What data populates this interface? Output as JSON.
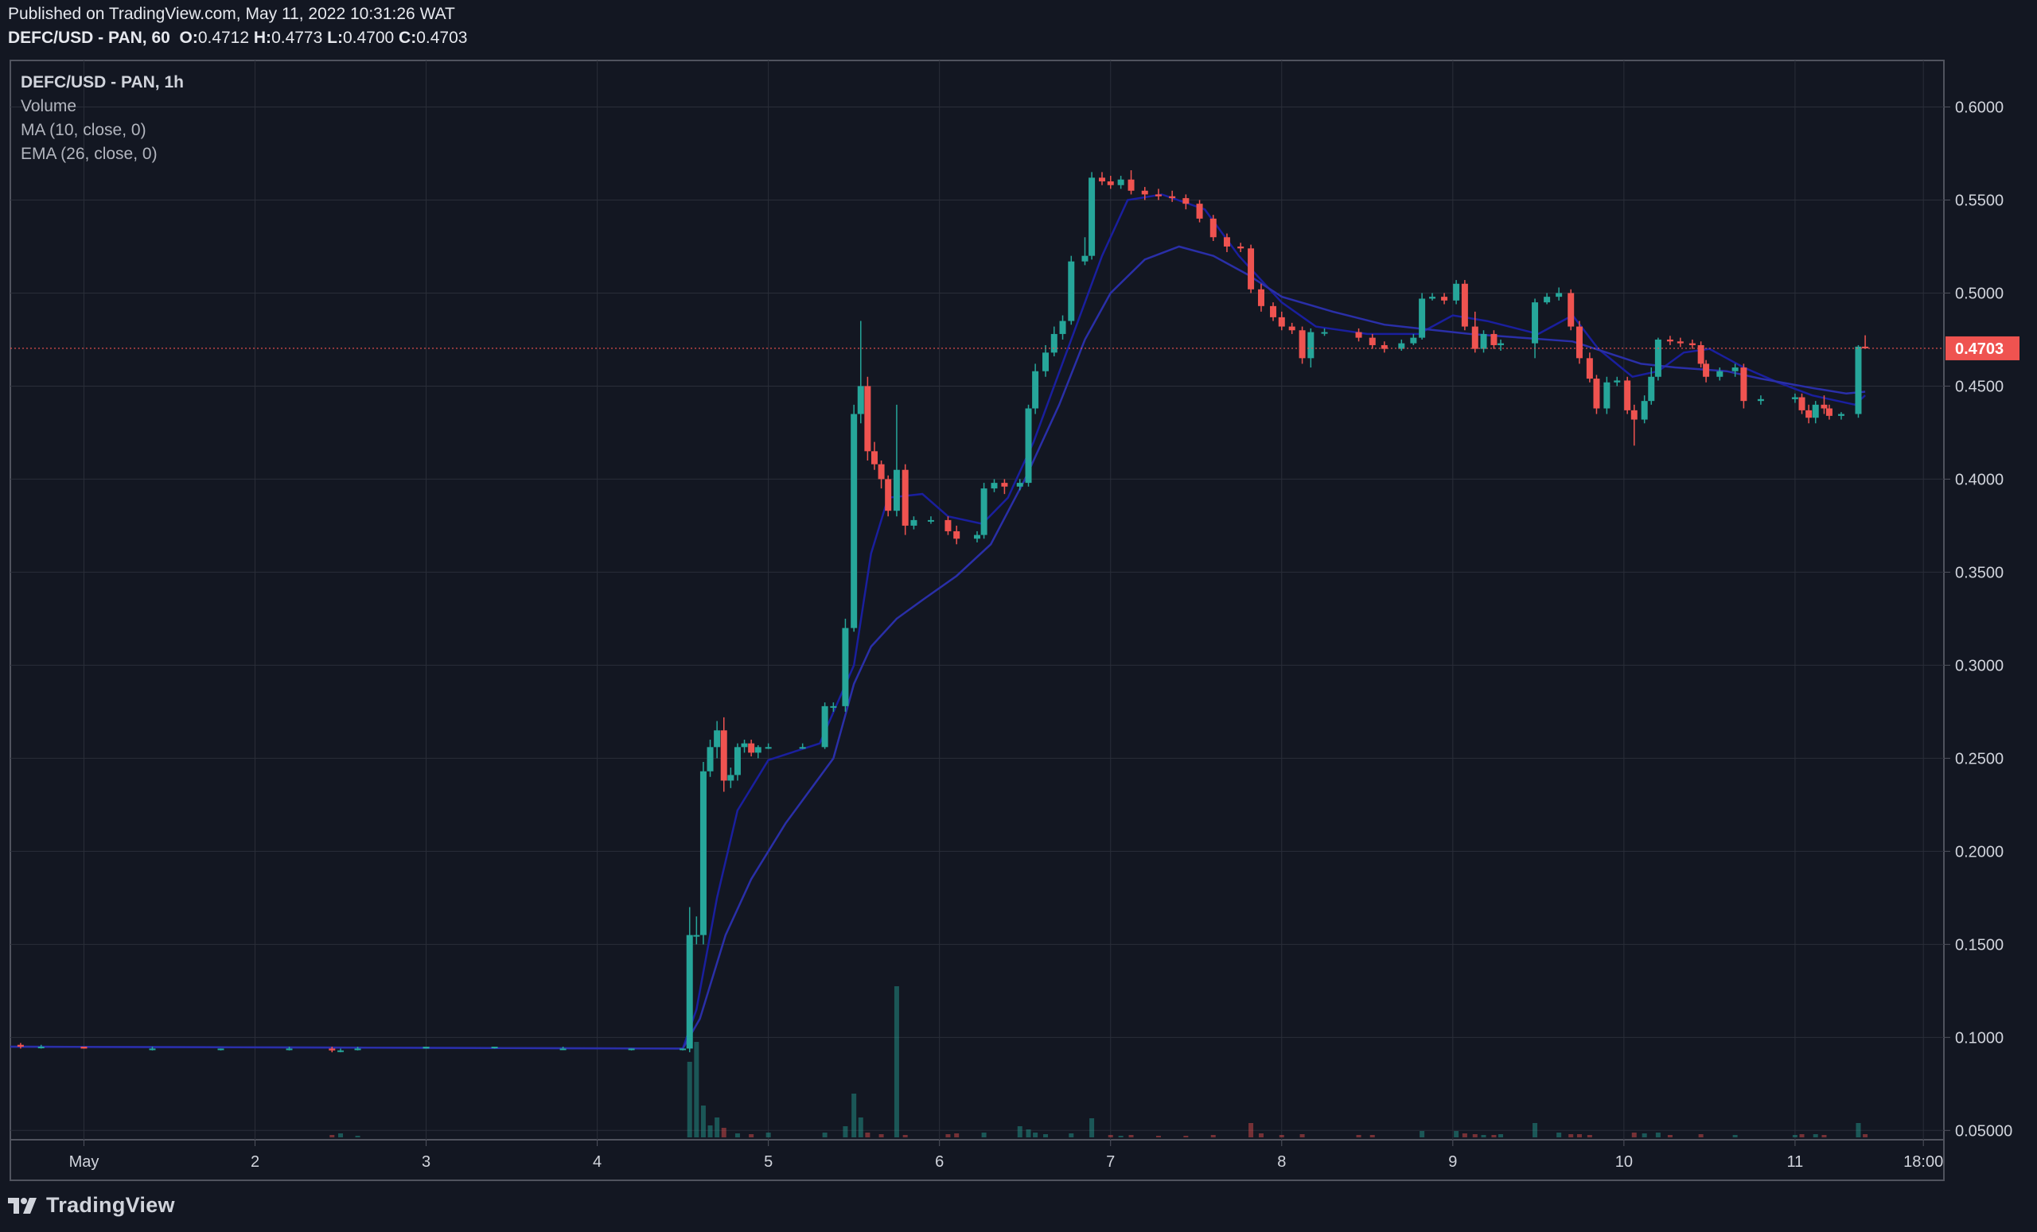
{
  "header": {
    "published": "Published on TradingView.com, May 11, 2022 10:31:26 WAT",
    "symbol": "DEFC/USD - PAN, 60",
    "o_label": "O:",
    "o": "0.4712",
    "h_label": "H:",
    "h": "0.4773",
    "l_label": "L:",
    "l": "0.4700",
    "c_label": "C:",
    "c": "0.4703"
  },
  "legend": {
    "title": "DEFC/USD - PAN, 1h",
    "volume": "Volume",
    "ma": "MA (10, close, 0)",
    "ema": "EMA (26, close, 0)"
  },
  "footer": {
    "brand": "TradingView"
  },
  "colors": {
    "background": "#131722",
    "up": "#26a69a",
    "down": "#ef5350",
    "ma": "#1a1f9e",
    "ema": "#2a2fa8",
    "grid": "#2a2e39",
    "price_line": "#ef5350"
  },
  "chart_data": {
    "type": "candlestick",
    "title": "DEFC/USD - PAN, 1h",
    "y_ticks": [
      "0.6000",
      "0.5500",
      "0.5000",
      "0.4500",
      "0.4000",
      "0.3500",
      "0.3000",
      "0.2500",
      "0.2000",
      "0.1500",
      "0.1000",
      "0.05000"
    ],
    "ylim": [
      0.045,
      0.625
    ],
    "x_ticks": [
      {
        "label": "May",
        "t": 0
      },
      {
        "label": "2",
        "t": 1
      },
      {
        "label": "3",
        "t": 2
      },
      {
        "label": "4",
        "t": 3
      },
      {
        "label": "5",
        "t": 4
      },
      {
        "label": "6",
        "t": 5
      },
      {
        "label": "7",
        "t": 6
      },
      {
        "label": "8",
        "t": 7
      },
      {
        "label": "9",
        "t": 8
      },
      {
        "label": "10",
        "t": 9
      },
      {
        "label": "11",
        "t": 10
      },
      {
        "label": "18:00",
        "t": 10.75
      }
    ],
    "xlim": [
      -0.43,
      10.87
    ],
    "last_price": 0.4703,
    "last_price_label": "0.4703",
    "candles": [
      [
        -0.37,
        0.096,
        0.097,
        0.094,
        0.095
      ],
      [
        -0.25,
        0.095,
        0.096,
        0.094,
        0.095
      ],
      [
        0.0,
        0.095,
        0.095,
        0.094,
        0.094
      ],
      [
        0.4,
        0.094,
        0.095,
        0.093,
        0.094
      ],
      [
        0.8,
        0.094,
        0.094,
        0.093,
        0.094
      ],
      [
        1.2,
        0.094,
        0.095,
        0.093,
        0.094
      ],
      [
        1.45,
        0.094,
        0.095,
        0.092,
        0.093
      ],
      [
        1.5,
        0.093,
        0.094,
        0.092,
        0.093
      ],
      [
        1.6,
        0.094,
        0.095,
        0.093,
        0.094
      ],
      [
        2.0,
        0.094,
        0.095,
        0.094,
        0.095
      ],
      [
        2.4,
        0.095,
        0.095,
        0.094,
        0.095
      ],
      [
        2.8,
        0.094,
        0.095,
        0.094,
        0.094
      ],
      [
        3.2,
        0.094,
        0.094,
        0.093,
        0.094
      ],
      [
        3.5,
        0.094,
        0.094,
        0.093,
        0.094
      ],
      [
        3.54,
        0.094,
        0.17,
        0.092,
        0.155
      ],
      [
        3.58,
        0.155,
        0.165,
        0.15,
        0.155
      ],
      [
        3.62,
        0.155,
        0.248,
        0.15,
        0.243
      ],
      [
        3.66,
        0.243,
        0.26,
        0.24,
        0.256
      ],
      [
        3.7,
        0.256,
        0.27,
        0.25,
        0.265
      ],
      [
        3.74,
        0.265,
        0.272,
        0.232,
        0.238
      ],
      [
        3.78,
        0.238,
        0.245,
        0.234,
        0.241
      ],
      [
        3.82,
        0.241,
        0.258,
        0.238,
        0.256
      ],
      [
        3.86,
        0.256,
        0.26,
        0.253,
        0.258
      ],
      [
        3.9,
        0.258,
        0.26,
        0.251,
        0.253
      ],
      [
        3.94,
        0.253,
        0.257,
        0.25,
        0.256
      ],
      [
        4.0,
        0.256,
        0.258,
        0.255,
        0.256
      ],
      [
        4.2,
        0.256,
        0.258,
        0.255,
        0.256
      ],
      [
        4.33,
        0.256,
        0.28,
        0.255,
        0.278
      ],
      [
        4.38,
        0.278,
        0.28,
        0.275,
        0.278
      ],
      [
        4.45,
        0.278,
        0.325,
        0.275,
        0.32
      ],
      [
        4.5,
        0.32,
        0.44,
        0.318,
        0.435
      ],
      [
        4.54,
        0.435,
        0.485,
        0.43,
        0.45
      ],
      [
        4.58,
        0.45,
        0.455,
        0.41,
        0.415
      ],
      [
        4.62,
        0.415,
        0.42,
        0.405,
        0.408
      ],
      [
        4.66,
        0.408,
        0.41,
        0.395,
        0.4
      ],
      [
        4.7,
        0.4,
        0.402,
        0.38,
        0.383
      ],
      [
        4.75,
        0.383,
        0.44,
        0.38,
        0.405
      ],
      [
        4.8,
        0.405,
        0.408,
        0.37,
        0.375
      ],
      [
        4.85,
        0.375,
        0.38,
        0.373,
        0.378
      ],
      [
        4.95,
        0.378,
        0.38,
        0.376,
        0.378
      ],
      [
        5.05,
        0.378,
        0.38,
        0.37,
        0.372
      ],
      [
        5.1,
        0.372,
        0.375,
        0.365,
        0.368
      ],
      [
        5.22,
        0.368,
        0.372,
        0.366,
        0.37
      ],
      [
        5.26,
        0.37,
        0.398,
        0.368,
        0.395
      ],
      [
        5.32,
        0.395,
        0.4,
        0.393,
        0.398
      ],
      [
        5.38,
        0.398,
        0.4,
        0.392,
        0.396
      ],
      [
        5.47,
        0.396,
        0.4,
        0.394,
        0.398
      ],
      [
        5.52,
        0.398,
        0.44,
        0.396,
        0.438
      ],
      [
        5.56,
        0.438,
        0.462,
        0.435,
        0.458
      ],
      [
        5.62,
        0.458,
        0.472,
        0.455,
        0.468
      ],
      [
        5.67,
        0.468,
        0.482,
        0.466,
        0.478
      ],
      [
        5.72,
        0.478,
        0.488,
        0.475,
        0.485
      ],
      [
        5.77,
        0.485,
        0.52,
        0.483,
        0.517
      ],
      [
        5.85,
        0.517,
        0.53,
        0.515,
        0.52
      ],
      [
        5.89,
        0.52,
        0.565,
        0.518,
        0.562
      ],
      [
        5.95,
        0.562,
        0.565,
        0.558,
        0.56
      ],
      [
        6.0,
        0.56,
        0.563,
        0.556,
        0.558
      ],
      [
        6.06,
        0.558,
        0.563,
        0.556,
        0.561
      ],
      [
        6.12,
        0.561,
        0.566,
        0.553,
        0.555
      ],
      [
        6.2,
        0.555,
        0.557,
        0.55,
        0.553
      ],
      [
        6.28,
        0.553,
        0.556,
        0.55,
        0.552
      ],
      [
        6.36,
        0.552,
        0.555,
        0.549,
        0.551
      ],
      [
        6.44,
        0.551,
        0.553,
        0.545,
        0.548
      ],
      [
        6.52,
        0.548,
        0.55,
        0.538,
        0.54
      ],
      [
        6.6,
        0.54,
        0.542,
        0.528,
        0.53
      ],
      [
        6.68,
        0.53,
        0.532,
        0.522,
        0.525
      ],
      [
        6.76,
        0.525,
        0.527,
        0.522,
        0.524
      ],
      [
        6.82,
        0.524,
        0.526,
        0.5,
        0.502
      ],
      [
        6.88,
        0.502,
        0.505,
        0.49,
        0.493
      ],
      [
        6.95,
        0.493,
        0.495,
        0.485,
        0.487
      ],
      [
        7.0,
        0.487,
        0.49,
        0.48,
        0.482
      ],
      [
        7.06,
        0.482,
        0.484,
        0.478,
        0.48
      ],
      [
        7.12,
        0.48,
        0.482,
        0.462,
        0.465
      ],
      [
        7.17,
        0.465,
        0.481,
        0.46,
        0.479
      ],
      [
        7.25,
        0.479,
        0.481,
        0.477,
        0.479
      ],
      [
        7.45,
        0.479,
        0.481,
        0.474,
        0.476
      ],
      [
        7.53,
        0.476,
        0.478,
        0.47,
        0.472
      ],
      [
        7.6,
        0.472,
        0.474,
        0.468,
        0.47
      ],
      [
        7.7,
        0.47,
        0.475,
        0.469,
        0.473
      ],
      [
        7.77,
        0.473,
        0.478,
        0.472,
        0.476
      ],
      [
        7.82,
        0.476,
        0.5,
        0.475,
        0.497
      ],
      [
        7.88,
        0.497,
        0.5,
        0.496,
        0.498
      ],
      [
        7.95,
        0.498,
        0.5,
        0.494,
        0.496
      ],
      [
        8.02,
        0.496,
        0.507,
        0.494,
        0.505
      ],
      [
        8.07,
        0.505,
        0.507,
        0.48,
        0.482
      ],
      [
        8.13,
        0.482,
        0.49,
        0.468,
        0.47
      ],
      [
        8.18,
        0.47,
        0.48,
        0.468,
        0.478
      ],
      [
        8.24,
        0.478,
        0.48,
        0.47,
        0.472
      ],
      [
        8.28,
        0.472,
        0.475,
        0.469,
        0.473
      ],
      [
        8.48,
        0.473,
        0.497,
        0.465,
        0.495
      ],
      [
        8.55,
        0.495,
        0.5,
        0.494,
        0.498
      ],
      [
        8.62,
        0.498,
        0.503,
        0.496,
        0.5
      ],
      [
        8.69,
        0.5,
        0.502,
        0.48,
        0.482
      ],
      [
        8.74,
        0.482,
        0.485,
        0.462,
        0.465
      ],
      [
        8.8,
        0.465,
        0.468,
        0.452,
        0.454
      ],
      [
        8.84,
        0.454,
        0.456,
        0.435,
        0.438
      ],
      [
        8.9,
        0.438,
        0.455,
        0.435,
        0.452
      ],
      [
        8.96,
        0.452,
        0.455,
        0.45,
        0.453
      ],
      [
        9.02,
        0.453,
        0.455,
        0.435,
        0.437
      ],
      [
        9.06,
        0.437,
        0.44,
        0.418,
        0.432
      ],
      [
        9.12,
        0.432,
        0.445,
        0.43,
        0.442
      ],
      [
        9.16,
        0.442,
        0.46,
        0.44,
        0.455
      ],
      [
        9.2,
        0.455,
        0.476,
        0.453,
        0.475
      ],
      [
        9.27,
        0.475,
        0.477,
        0.472,
        0.474
      ],
      [
        9.33,
        0.474,
        0.476,
        0.471,
        0.473
      ],
      [
        9.4,
        0.473,
        0.475,
        0.47,
        0.472
      ],
      [
        9.45,
        0.472,
        0.474,
        0.46,
        0.462
      ],
      [
        9.48,
        0.462,
        0.464,
        0.452,
        0.455
      ],
      [
        9.56,
        0.455,
        0.46,
        0.453,
        0.458
      ],
      [
        9.65,
        0.458,
        0.462,
        0.455,
        0.46
      ],
      [
        9.7,
        0.46,
        0.462,
        0.438,
        0.442
      ],
      [
        9.8,
        0.442,
        0.445,
        0.44,
        0.443
      ],
      [
        10.0,
        0.443,
        0.446,
        0.441,
        0.444
      ],
      [
        10.04,
        0.444,
        0.446,
        0.435,
        0.437
      ],
      [
        10.08,
        0.437,
        0.44,
        0.43,
        0.433
      ],
      [
        10.12,
        0.433,
        0.442,
        0.43,
        0.44
      ],
      [
        10.17,
        0.44,
        0.445,
        0.435,
        0.438
      ],
      [
        10.2,
        0.438,
        0.44,
        0.432,
        0.434
      ],
      [
        10.27,
        0.434,
        0.436,
        0.432,
        0.435
      ],
      [
        10.37,
        0.435,
        0.472,
        0.433,
        0.4712
      ],
      [
        10.41,
        0.4712,
        0.4773,
        0.47,
        0.4703
      ]
    ],
    "volume": [
      [
        1.45,
        3
      ],
      [
        1.5,
        5
      ],
      [
        1.6,
        2
      ],
      [
        3.54,
        95
      ],
      [
        3.58,
        120
      ],
      [
        3.62,
        40
      ],
      [
        3.66,
        15
      ],
      [
        3.7,
        25
      ],
      [
        3.74,
        12
      ],
      [
        3.82,
        5
      ],
      [
        3.9,
        4
      ],
      [
        4.0,
        6
      ],
      [
        4.33,
        6
      ],
      [
        4.45,
        14
      ],
      [
        4.5,
        55
      ],
      [
        4.54,
        25
      ],
      [
        4.58,
        6
      ],
      [
        4.66,
        4
      ],
      [
        4.75,
        190
      ],
      [
        4.8,
        3
      ],
      [
        5.05,
        4
      ],
      [
        5.1,
        5
      ],
      [
        5.26,
        6
      ],
      [
        5.47,
        14
      ],
      [
        5.52,
        10
      ],
      [
        5.56,
        6
      ],
      [
        5.62,
        4
      ],
      [
        5.77,
        5
      ],
      [
        5.89,
        24
      ],
      [
        6.0,
        3
      ],
      [
        6.06,
        2
      ],
      [
        6.12,
        3
      ],
      [
        6.28,
        2
      ],
      [
        6.44,
        2
      ],
      [
        6.6,
        3
      ],
      [
        6.82,
        18
      ],
      [
        6.88,
        5
      ],
      [
        7.0,
        3
      ],
      [
        7.12,
        4
      ],
      [
        7.45,
        3
      ],
      [
        7.53,
        3
      ],
      [
        7.82,
        8
      ],
      [
        8.02,
        8
      ],
      [
        8.07,
        5
      ],
      [
        8.13,
        4
      ],
      [
        8.18,
        3
      ],
      [
        8.24,
        3
      ],
      [
        8.28,
        4
      ],
      [
        8.48,
        18
      ],
      [
        8.62,
        6
      ],
      [
        8.69,
        4
      ],
      [
        8.74,
        4
      ],
      [
        8.8,
        3
      ],
      [
        9.06,
        6
      ],
      [
        9.12,
        5
      ],
      [
        9.2,
        6
      ],
      [
        9.27,
        3
      ],
      [
        9.45,
        4
      ],
      [
        9.65,
        3
      ],
      [
        10.0,
        3
      ],
      [
        10.04,
        4
      ],
      [
        10.12,
        4
      ],
      [
        10.17,
        3
      ],
      [
        10.37,
        18
      ],
      [
        10.41,
        4
      ]
    ],
    "ma": [
      [
        -0.43,
        0.095
      ],
      [
        3.5,
        0.094
      ],
      [
        3.58,
        0.115
      ],
      [
        3.7,
        0.175
      ],
      [
        3.82,
        0.222
      ],
      [
        4.0,
        0.249
      ],
      [
        4.3,
        0.258
      ],
      [
        4.5,
        0.3
      ],
      [
        4.6,
        0.36
      ],
      [
        4.7,
        0.39
      ],
      [
        4.9,
        0.392
      ],
      [
        5.05,
        0.38
      ],
      [
        5.25,
        0.376
      ],
      [
        5.4,
        0.39
      ],
      [
        5.55,
        0.42
      ],
      [
        5.75,
        0.47
      ],
      [
        5.95,
        0.52
      ],
      [
        6.1,
        0.55
      ],
      [
        6.3,
        0.553
      ],
      [
        6.55,
        0.545
      ],
      [
        6.75,
        0.52
      ],
      [
        7.0,
        0.495
      ],
      [
        7.2,
        0.482
      ],
      [
        7.5,
        0.478
      ],
      [
        7.8,
        0.478
      ],
      [
        8.0,
        0.488
      ],
      [
        8.2,
        0.485
      ],
      [
        8.5,
        0.478
      ],
      [
        8.7,
        0.488
      ],
      [
        8.85,
        0.47
      ],
      [
        9.05,
        0.455
      ],
      [
        9.2,
        0.458
      ],
      [
        9.35,
        0.468
      ],
      [
        9.5,
        0.47
      ],
      [
        9.7,
        0.46
      ],
      [
        9.9,
        0.452
      ],
      [
        10.1,
        0.445
      ],
      [
        10.35,
        0.44
      ],
      [
        10.41,
        0.445
      ]
    ],
    "ema": [
      [
        -0.43,
        0.095
      ],
      [
        3.5,
        0.094
      ],
      [
        3.6,
        0.11
      ],
      [
        3.75,
        0.155
      ],
      [
        3.9,
        0.185
      ],
      [
        4.1,
        0.215
      ],
      [
        4.38,
        0.25
      ],
      [
        4.5,
        0.29
      ],
      [
        4.6,
        0.31
      ],
      [
        4.75,
        0.325
      ],
      [
        4.9,
        0.335
      ],
      [
        5.1,
        0.348
      ],
      [
        5.3,
        0.365
      ],
      [
        5.5,
        0.4
      ],
      [
        5.7,
        0.44
      ],
      [
        5.85,
        0.475
      ],
      [
        6.0,
        0.5
      ],
      [
        6.2,
        0.518
      ],
      [
        6.4,
        0.525
      ],
      [
        6.6,
        0.52
      ],
      [
        6.8,
        0.51
      ],
      [
        7.0,
        0.498
      ],
      [
        7.3,
        0.49
      ],
      [
        7.6,
        0.483
      ],
      [
        7.9,
        0.48
      ],
      [
        8.1,
        0.478
      ],
      [
        8.4,
        0.476
      ],
      [
        8.7,
        0.474
      ],
      [
        8.9,
        0.468
      ],
      [
        9.1,
        0.462
      ],
      [
        9.3,
        0.46
      ],
      [
        9.6,
        0.458
      ],
      [
        9.8,
        0.454
      ],
      [
        10.1,
        0.449
      ],
      [
        10.3,
        0.446
      ],
      [
        10.41,
        0.447
      ]
    ]
  }
}
